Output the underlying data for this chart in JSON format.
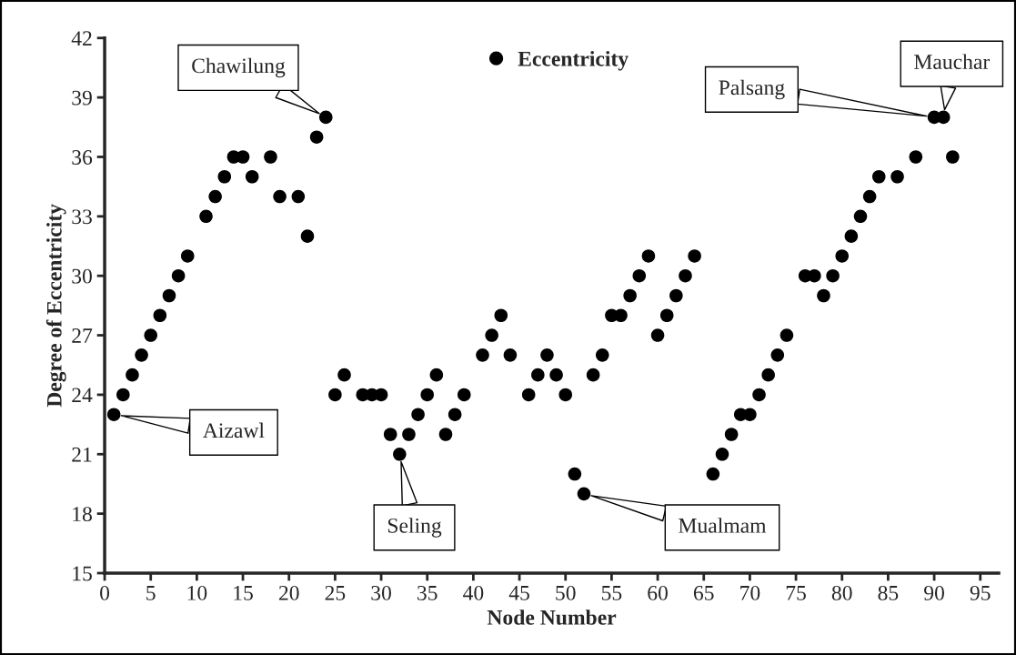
{
  "chart_data": {
    "type": "scatter",
    "xlabel": "Node Number",
    "ylabel": "Degree of Eccentricity",
    "x": [
      1,
      2,
      3,
      4,
      5,
      6,
      7,
      8,
      9,
      11,
      12,
      13,
      14,
      15,
      16,
      18,
      19,
      21,
      22,
      23,
      24,
      25,
      26,
      28,
      29,
      30,
      31,
      32,
      33,
      34,
      35,
      36,
      37,
      38,
      39,
      41,
      42,
      43,
      44,
      46,
      47,
      48,
      49,
      50,
      51,
      52,
      53,
      54,
      55,
      56,
      57,
      58,
      59,
      60,
      61,
      62,
      63,
      64,
      66,
      67,
      68,
      69,
      70,
      71,
      72,
      73,
      74,
      76,
      77,
      78,
      79,
      80,
      81,
      82,
      83,
      84,
      86,
      88,
      90,
      91,
      92
    ],
    "series": [
      {
        "name": "Eccentricity",
        "color": "#000000",
        "values": [
          23,
          24,
          25,
          26,
          27,
          28,
          29,
          30,
          31,
          33,
          34,
          35,
          36,
          36,
          35,
          36,
          34,
          34,
          32,
          37,
          38,
          24,
          25,
          24,
          24,
          24,
          22,
          21,
          22,
          23,
          24,
          25,
          22,
          23,
          24,
          26,
          27,
          28,
          26,
          24,
          25,
          26,
          25,
          24,
          20,
          19,
          25,
          26,
          28,
          28,
          29,
          30,
          31,
          27,
          28,
          29,
          30,
          31,
          20,
          21,
          22,
          23,
          23,
          24,
          25,
          26,
          27,
          30,
          30,
          29,
          30,
          31,
          32,
          33,
          34,
          35,
          35,
          36,
          38,
          38,
          36
        ]
      }
    ],
    "xlim": [
      0,
      97
    ],
    "xticks": [
      0,
      5,
      10,
      15,
      20,
      25,
      30,
      35,
      40,
      45,
      50,
      55,
      60,
      65,
      70,
      75,
      80,
      85,
      90,
      95
    ],
    "ylim": [
      15,
      42
    ],
    "yticks": [
      15,
      18,
      21,
      24,
      27,
      30,
      33,
      36,
      39,
      42
    ],
    "marker": "circle",
    "legend": "top",
    "grid": false,
    "annotations": [
      {
        "text": "Aizawl",
        "x": 1,
        "y": 23
      },
      {
        "text": "Chawilung",
        "x": 24,
        "y": 38
      },
      {
        "text": "Seling",
        "x": 32,
        "y": 21
      },
      {
        "text": "Mualmam",
        "x": 52,
        "y": 19
      },
      {
        "text": "Palsang",
        "x": 90,
        "y": 38
      },
      {
        "text": "Mauchar",
        "x": 91,
        "y": 38
      }
    ]
  }
}
